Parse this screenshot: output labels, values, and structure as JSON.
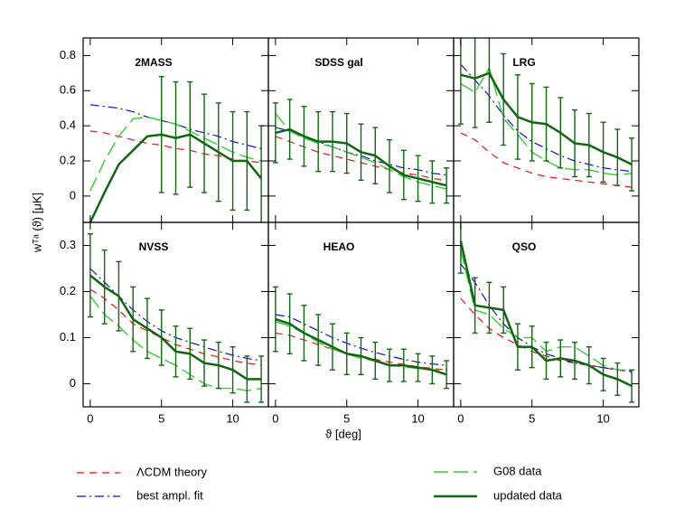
{
  "xlabel": "ϑ [deg]",
  "ylabel": "wᵀᵃ (ϑ)  [μK]",
  "chart_data": [
    {
      "type": "line",
      "title": "2MASS",
      "x": [
        0,
        1,
        2,
        3,
        4,
        5,
        6,
        7,
        8,
        9,
        10,
        11,
        12
      ],
      "xlim": [
        -0.5,
        12.5
      ],
      "xticks": [
        0,
        5,
        10
      ],
      "ylim": [
        -0.15,
        0.9
      ],
      "yticks": [
        0,
        0.2,
        0.4,
        0.6,
        0.8
      ],
      "series": [
        {
          "name": "ΛCDM theory",
          "color": "#ee1111",
          "style": "dashed",
          "values": [
            0.37,
            0.36,
            0.34,
            0.32,
            0.3,
            0.29,
            0.27,
            0.26,
            0.24,
            0.23,
            0.21,
            0.2,
            0.19
          ]
        },
        {
          "name": "best ampl. fit",
          "color": "#1111cc",
          "style": "dashdot",
          "values": [
            0.52,
            0.51,
            0.5,
            0.48,
            0.45,
            0.43,
            0.41,
            0.38,
            0.36,
            0.34,
            0.31,
            0.29,
            0.27
          ]
        },
        {
          "name": "G08 data",
          "color": "#33cc33",
          "style": "longdash",
          "values": [
            0.03,
            0.2,
            0.34,
            0.44,
            0.45,
            0.43,
            0.41,
            0.37,
            0.33,
            0.29,
            0.25,
            0.22,
            0.2
          ]
        },
        {
          "name": "updated data",
          "color": "#116611",
          "style": "solid",
          "values": [
            -0.15,
            0.02,
            0.18,
            0.26,
            0.34,
            0.35,
            0.33,
            0.35,
            0.3,
            0.25,
            0.2,
            0.2,
            0.1
          ],
          "errors": [
            null,
            null,
            null,
            null,
            null,
            0.33,
            0.32,
            0.3,
            0.28,
            0.28,
            0.28,
            0.28,
            0.3
          ]
        }
      ]
    },
    {
      "type": "line",
      "title": "SDSS gal",
      "x": [
        0,
        1,
        2,
        3,
        4,
        5,
        6,
        7,
        8,
        9,
        10,
        11,
        12
      ],
      "xlim": [
        -0.5,
        12.5
      ],
      "xticks": [
        0,
        5,
        10
      ],
      "ylim": [
        -0.15,
        0.9
      ],
      "yticks": [
        0,
        0.2,
        0.4,
        0.6,
        0.8
      ],
      "series": [
        {
          "name": "ΛCDM theory",
          "color": "#ee1111",
          "style": "dashed",
          "values": [
            0.34,
            0.31,
            0.28,
            0.25,
            0.23,
            0.21,
            0.19,
            0.17,
            0.15,
            0.13,
            0.12,
            0.1,
            0.09
          ]
        },
        {
          "name": "best ampl. fit",
          "color": "#1111cc",
          "style": "dashdot",
          "values": [
            0.39,
            0.37,
            0.34,
            0.31,
            0.28,
            0.25,
            0.23,
            0.2,
            0.18,
            0.16,
            0.15,
            0.13,
            0.12
          ]
        },
        {
          "name": "G08 data",
          "color": "#33cc33",
          "style": "longdash",
          "values": [
            0.47,
            0.37,
            0.33,
            0.3,
            0.28,
            0.25,
            0.22,
            0.19,
            0.15,
            0.11,
            0.08,
            0.06,
            0.04
          ]
        },
        {
          "name": "updated data",
          "color": "#116611",
          "style": "solid",
          "values": [
            0.36,
            0.38,
            0.34,
            0.31,
            0.31,
            0.3,
            0.25,
            0.23,
            0.17,
            0.12,
            0.1,
            0.08,
            0.06
          ],
          "errors": [
            0.17,
            0.17,
            0.17,
            0.17,
            0.17,
            0.17,
            0.16,
            0.16,
            0.15,
            0.14,
            0.13,
            0.12,
            0.1
          ]
        }
      ]
    },
    {
      "type": "line",
      "title": "LRG",
      "x": [
        0,
        1,
        2,
        3,
        4,
        5,
        6,
        7,
        8,
        9,
        10,
        11,
        12
      ],
      "xlim": [
        -0.5,
        12.5
      ],
      "xticks": [
        0,
        5,
        10
      ],
      "ylim": [
        -0.15,
        0.9
      ],
      "yticks": [
        0,
        0.2,
        0.4,
        0.6,
        0.8
      ],
      "series": [
        {
          "name": "ΛCDM theory",
          "color": "#ee1111",
          "style": "dashed",
          "values": [
            0.36,
            0.32,
            0.25,
            0.19,
            0.16,
            0.13,
            0.11,
            0.1,
            0.09,
            0.08,
            0.07,
            0.06,
            0.05
          ]
        },
        {
          "name": "best ampl. fit",
          "color": "#1111cc",
          "style": "dashdot",
          "values": [
            0.75,
            0.66,
            0.57,
            0.46,
            0.37,
            0.31,
            0.27,
            0.23,
            0.2,
            0.18,
            0.16,
            0.15,
            0.14
          ]
        },
        {
          "name": "G08 data",
          "color": "#33cc33",
          "style": "longdash",
          "values": [
            0.64,
            0.59,
            0.73,
            0.44,
            0.35,
            0.25,
            0.2,
            0.16,
            0.15,
            0.15,
            0.13,
            0.12,
            0.13
          ]
        },
        {
          "name": "updated data",
          "color": "#116611",
          "style": "solid",
          "values": [
            0.69,
            0.67,
            0.7,
            0.55,
            0.45,
            0.42,
            0.41,
            0.36,
            0.3,
            0.29,
            0.25,
            0.22,
            0.18
          ],
          "errors": [
            0.28,
            0.28,
            0.28,
            0.26,
            0.24,
            0.22,
            0.21,
            0.2,
            0.19,
            0.18,
            0.17,
            0.16,
            0.15
          ]
        }
      ]
    },
    {
      "type": "line",
      "title": "NVSS",
      "x": [
        0,
        1,
        2,
        3,
        4,
        5,
        6,
        7,
        8,
        9,
        10,
        11,
        12
      ],
      "xlim": [
        -0.5,
        12.5
      ],
      "xticks": [
        0,
        5,
        10
      ],
      "ylim": [
        -0.05,
        0.35
      ],
      "yticks": [
        0,
        0.1,
        0.2,
        0.3
      ],
      "series": [
        {
          "name": "ΛCDM theory",
          "color": "#ee1111",
          "style": "dashed",
          "values": [
            0.205,
            0.185,
            0.16,
            0.13,
            0.115,
            0.1,
            0.085,
            0.075,
            0.065,
            0.058,
            0.05,
            0.045,
            0.04
          ]
        },
        {
          "name": "best ampl. fit",
          "color": "#1111cc",
          "style": "dashdot",
          "values": [
            0.25,
            0.22,
            0.19,
            0.16,
            0.135,
            0.115,
            0.1,
            0.09,
            0.08,
            0.07,
            0.062,
            0.055,
            0.05
          ]
        },
        {
          "name": "G08 data",
          "color": "#33cc33",
          "style": "longdash",
          "values": [
            0.19,
            0.15,
            0.125,
            0.095,
            0.07,
            0.055,
            0.04,
            0.02,
            0.0,
            -0.01,
            -0.01,
            -0.015,
            -0.01
          ]
        },
        {
          "name": "updated data",
          "color": "#116611",
          "style": "solid",
          "values": [
            0.235,
            0.21,
            0.19,
            0.14,
            0.12,
            0.1,
            0.07,
            0.065,
            0.045,
            0.04,
            0.03,
            0.01,
            0.01
          ],
          "errors": [
            0.09,
            0.08,
            0.075,
            0.07,
            0.065,
            0.06,
            0.055,
            0.055,
            0.05,
            0.05,
            0.05,
            0.05,
            0.05
          ]
        }
      ]
    },
    {
      "type": "line",
      "title": "HEAO",
      "x": [
        0,
        1,
        2,
        3,
        4,
        5,
        6,
        7,
        8,
        9,
        10,
        11,
        12
      ],
      "xlim": [
        -0.5,
        12.5
      ],
      "xticks": [
        0,
        5,
        10
      ],
      "ylim": [
        -0.05,
        0.35
      ],
      "yticks": [
        0,
        0.1,
        0.2,
        0.3
      ],
      "series": [
        {
          "name": "ΛCDM theory",
          "color": "#ee1111",
          "style": "dashed",
          "values": [
            0.11,
            0.105,
            0.095,
            0.085,
            0.075,
            0.067,
            0.06,
            0.053,
            0.047,
            0.042,
            0.037,
            0.033,
            0.03
          ]
        },
        {
          "name": "best ampl. fit",
          "color": "#1111cc",
          "style": "dashdot",
          "values": [
            0.15,
            0.145,
            0.13,
            0.115,
            0.1,
            0.088,
            0.077,
            0.068,
            0.06,
            0.053,
            0.047,
            0.043,
            0.04
          ]
        },
        {
          "name": "G08 data",
          "color": "#33cc33",
          "style": "longdash",
          "values": [
            0.135,
            0.125,
            0.11,
            0.09,
            0.075,
            0.065,
            0.055,
            0.05,
            0.04,
            0.037,
            0.033,
            0.03,
            0.03
          ]
        },
        {
          "name": "updated data",
          "color": "#116611",
          "style": "solid",
          "values": [
            0.14,
            0.13,
            0.11,
            0.095,
            0.08,
            0.065,
            0.06,
            0.05,
            0.04,
            0.04,
            0.035,
            0.03,
            0.02
          ],
          "errors": [
            0.07,
            0.065,
            0.06,
            0.055,
            0.05,
            0.045,
            0.04,
            0.04,
            0.035,
            0.035,
            0.03,
            0.03,
            0.03
          ]
        }
      ]
    },
    {
      "type": "line",
      "title": "QSO",
      "x": [
        0,
        1,
        2,
        3,
        4,
        5,
        6,
        7,
        8,
        9,
        10,
        11,
        12
      ],
      "xlim": [
        -0.5,
        12.5
      ],
      "xticks": [
        0,
        5,
        10
      ],
      "ylim": [
        -0.05,
        0.35
      ],
      "yticks": [
        0,
        0.1,
        0.2,
        0.3
      ],
      "series": [
        {
          "name": "ΛCDM theory",
          "color": "#ee1111",
          "style": "dashed",
          "values": [
            0.185,
            0.15,
            0.12,
            0.1,
            0.085,
            0.07,
            0.06,
            0.05,
            0.045,
            0.04,
            0.035,
            0.03,
            0.025
          ]
        },
        {
          "name": "best ampl. fit",
          "color": "#1111cc",
          "style": "dashdot",
          "values": [
            0.26,
            0.22,
            0.17,
            0.13,
            0.1,
            0.08,
            0.065,
            0.055,
            0.045,
            0.04,
            0.035,
            0.03,
            0.028
          ]
        },
        {
          "name": "G08 data",
          "color": "#33cc33",
          "style": "longdash",
          "values": [
            0.29,
            0.16,
            0.15,
            0.12,
            0.1,
            0.1,
            0.07,
            0.08,
            0.08,
            0.06,
            0.04,
            0.03,
            0.03
          ]
        },
        {
          "name": "updated data",
          "color": "#116611",
          "style": "solid",
          "values": [
            0.31,
            0.17,
            0.165,
            0.16,
            0.08,
            0.08,
            0.05,
            0.055,
            0.05,
            0.04,
            0.02,
            0.01,
            -0.005
          ],
          "errors": [
            0.07,
            0.06,
            0.055,
            0.05,
            0.05,
            0.045,
            0.04,
            0.04,
            0.04,
            0.04,
            0.035,
            0.035,
            0.035
          ]
        }
      ]
    }
  ]
}
